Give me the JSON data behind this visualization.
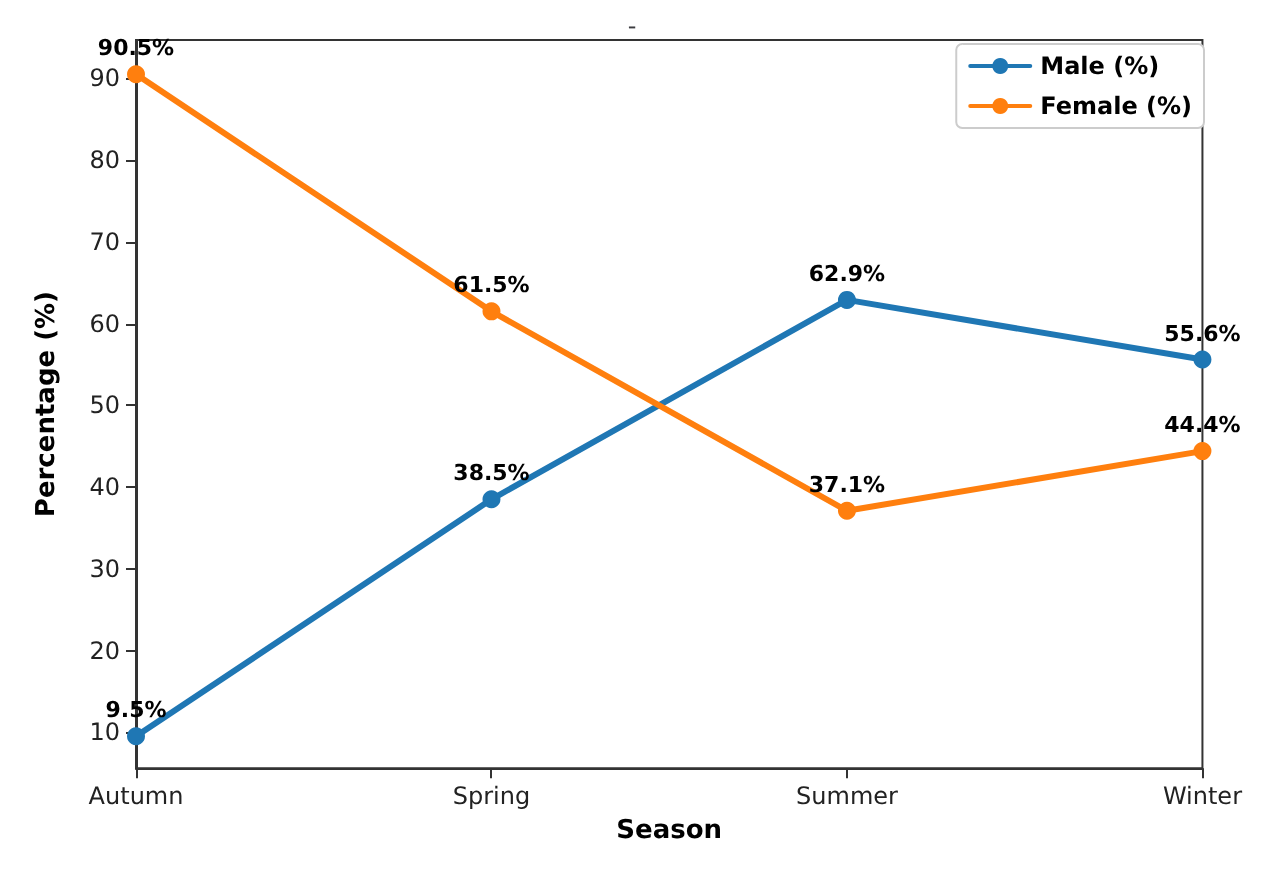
{
  "chart_data": {
    "type": "line",
    "title": "-",
    "xlabel": "Season",
    "ylabel": "Percentage (%)",
    "categories": [
      "Autumn",
      "Spring",
      "Summer",
      "Winter"
    ],
    "series": [
      {
        "name": "Male (%)",
        "color": "#1f77b4",
        "values": [
          9.5,
          38.5,
          62.9,
          55.6
        ],
        "value_labels": [
          "9.5%",
          "38.5%",
          "62.9%",
          "55.6%"
        ]
      },
      {
        "name": "Female (%)",
        "color": "#ff7f0e",
        "values": [
          90.5,
          61.5,
          37.1,
          44.4
        ],
        "value_labels": [
          "90.5%",
          "61.5%",
          "37.1%",
          "44.4%"
        ]
      }
    ],
    "ylim": [
      5.6,
      94.7
    ],
    "yticks": [
      10,
      20,
      30,
      40,
      50,
      60,
      70,
      80,
      90
    ],
    "grid": false,
    "legend": "top right",
    "marker": "circle",
    "line_style": "solid"
  }
}
